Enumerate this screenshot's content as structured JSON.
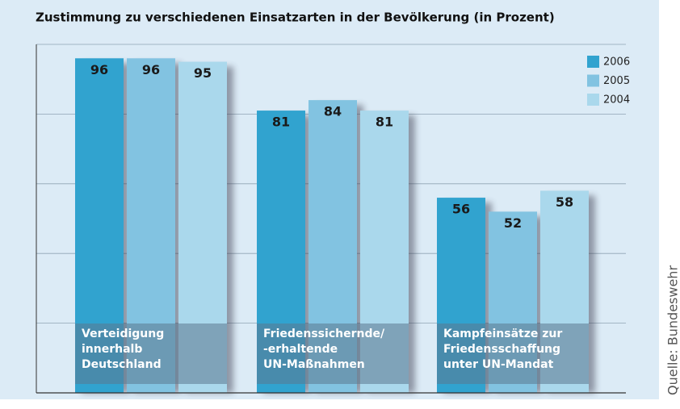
{
  "chart_data": {
    "type": "bar",
    "title": "Zustimmung zu verschiedenen Einsatzarten in der Bevölkerung (in Prozent)",
    "categories": [
      "Verteidigung\ninnerhalb\nDeutschland",
      "Friedenssichernde/\n-erhaltende\nUN-Maßnahmen",
      "Kampfeinsätze zur\nFriedensschaffung\nunter UN-Mandat"
    ],
    "series": [
      {
        "name": "2006",
        "color": "#31a3cf",
        "values": [
          96,
          81,
          56
        ]
      },
      {
        "name": "2005",
        "color": "#82c3e1",
        "values": [
          96,
          84,
          52
        ]
      },
      {
        "name": "2004",
        "color": "#aad8ec",
        "values": [
          95,
          81,
          58
        ]
      }
    ],
    "ylim": [
      0,
      100
    ],
    "yticks": [
      0,
      20,
      40,
      60,
      80,
      100
    ],
    "grid": true,
    "legend": "top-right",
    "source": "Quelle: Bundeswehr"
  }
}
